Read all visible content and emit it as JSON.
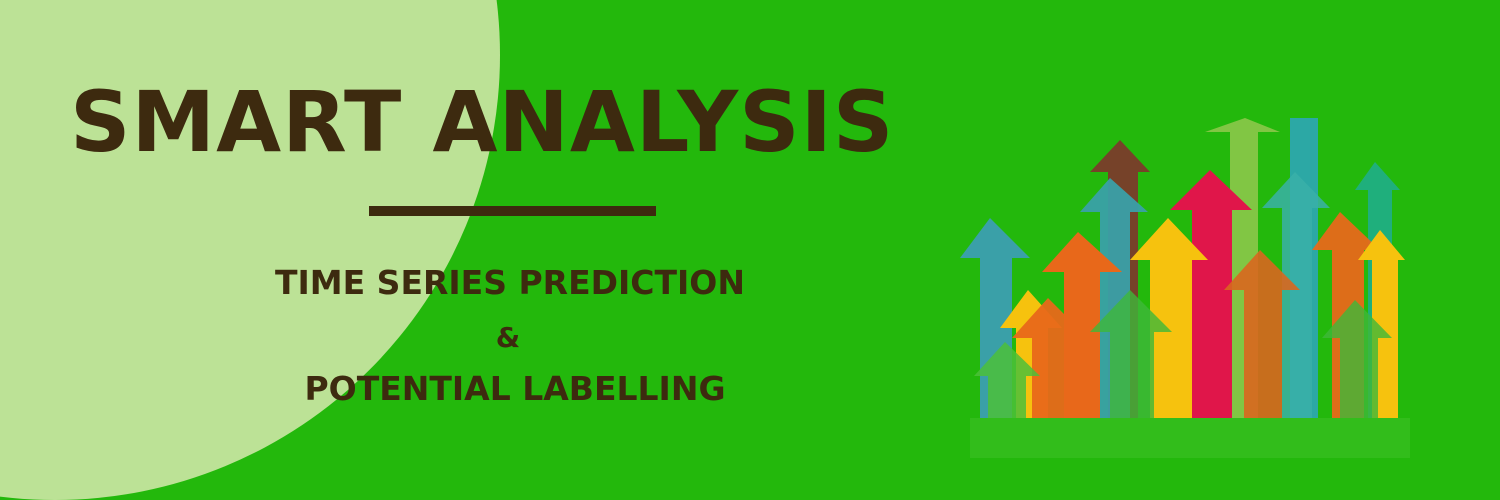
{
  "banner": {
    "title": "SMART ANALYSIS",
    "subtitle_line1": "TIME SERIES PREDICTION",
    "subtitle_amp": "&",
    "subtitle_line2": "POTENTIAL LABELLING"
  },
  "colors": {
    "background": "#23b80c",
    "light_circle": "#bce296",
    "text": "#3d2a0f"
  },
  "illustration": {
    "name": "rising-arrows",
    "arrow_colors": [
      "#3aa0a8",
      "#e8681a",
      "#f6c20e",
      "#7b3b2b",
      "#e0164a",
      "#7cc245",
      "#2aa4b4",
      "#1fae88"
    ]
  }
}
